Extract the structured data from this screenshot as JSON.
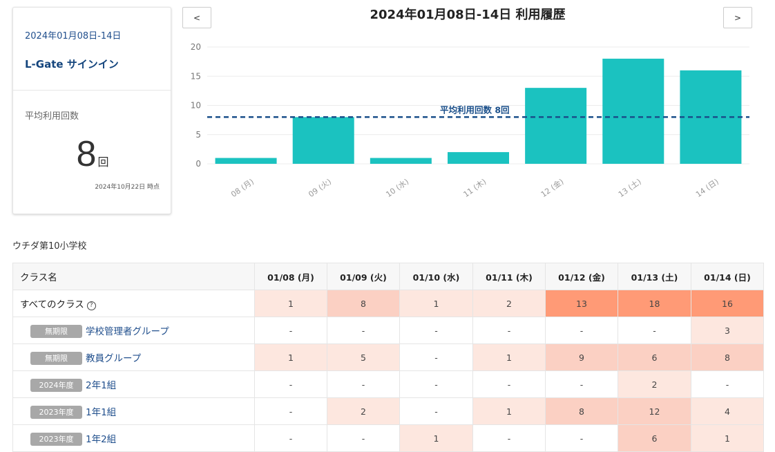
{
  "summary": {
    "date_range": "2024年01月08日-14日",
    "app_name": "L-Gate サインイン",
    "avg_label": "平均利用回数",
    "avg_value": "8",
    "avg_unit": "回",
    "as_of": "2024年10月22日 時点"
  },
  "nav": {
    "prev": "<",
    "next": ">"
  },
  "chart_title": "2024年01月08日-14日 利用履歴",
  "chart_data": {
    "type": "bar",
    "categories": [
      "08 (月)",
      "09 (火)",
      "10 (水)",
      "11 (木)",
      "12 (金)",
      "13 (土)",
      "14 (日)"
    ],
    "values": [
      1,
      8,
      1,
      2,
      13,
      18,
      16
    ],
    "ylim": [
      0,
      20
    ],
    "yticks": [
      "0",
      "5",
      "10",
      "15",
      "20"
    ],
    "average": 8,
    "average_label": "平均利用回数 8回",
    "bar_color": "#1bc2c0",
    "average_line_color": "#1a4f8a",
    "grid": true
  },
  "school_name": "ウチダ第10小学校",
  "table": {
    "header_name": "クラス名",
    "dates": [
      "01/08 (月)",
      "01/09 (火)",
      "01/10 (水)",
      "01/11 (木)",
      "01/12 (金)",
      "01/13 (土)",
      "01/14 (日)"
    ],
    "rows": [
      {
        "badge": "",
        "name": "すべてのクラス",
        "help": "?",
        "values": [
          "1",
          "8",
          "1",
          "2",
          "13",
          "18",
          "16"
        ]
      },
      {
        "badge": "無期限",
        "name": "学校管理者グループ",
        "values": [
          "-",
          "-",
          "-",
          "-",
          "-",
          "-",
          "3"
        ]
      },
      {
        "badge": "無期限",
        "name": "教員グループ",
        "values": [
          "1",
          "5",
          "-",
          "1",
          "9",
          "6",
          "8"
        ]
      },
      {
        "badge": "2024年度",
        "name": "2年1組",
        "values": [
          "-",
          "-",
          "-",
          "-",
          "-",
          "2",
          "-"
        ]
      },
      {
        "badge": "2023年度",
        "name": "1年1組",
        "values": [
          "-",
          "2",
          "-",
          "1",
          "8",
          "12",
          "4"
        ]
      },
      {
        "badge": "2023年度",
        "name": "1年2組",
        "values": [
          "-",
          "-",
          "1",
          "-",
          "-",
          "6",
          "1"
        ]
      }
    ]
  },
  "colors": {
    "heat_light": "#fde7df",
    "heat_mid": "#fbd0c3",
    "heat_strong": "#ff9a76"
  }
}
